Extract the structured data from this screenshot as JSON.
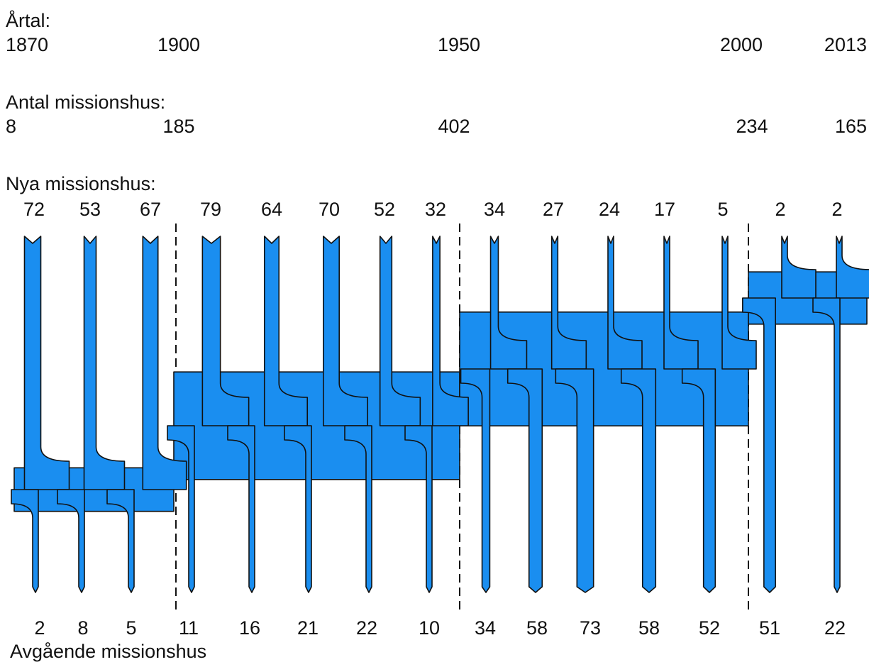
{
  "years": {
    "heading": "Årtal:",
    "values": [
      "1870",
      "1900",
      "1950",
      "2000",
      "2013"
    ]
  },
  "total_houses": {
    "heading": "Antal missionshus:",
    "values": [
      "8",
      "185",
      "402",
      "234",
      "165"
    ]
  },
  "new_houses": {
    "heading": "Nya missionshus:",
    "values": [
      72,
      53,
      67,
      79,
      64,
      70,
      52,
      32,
      34,
      27,
      24,
      17,
      5,
      2,
      2
    ]
  },
  "departing_houses": {
    "heading": "Avgående missionshus",
    "values": [
      2,
      8,
      5,
      11,
      16,
      21,
      22,
      10,
      34,
      58,
      73,
      58,
      52,
      51,
      22
    ]
  },
  "colors": {
    "flow": "#1a8ef0",
    "outline": "#111111",
    "divider": "#111111"
  }
}
